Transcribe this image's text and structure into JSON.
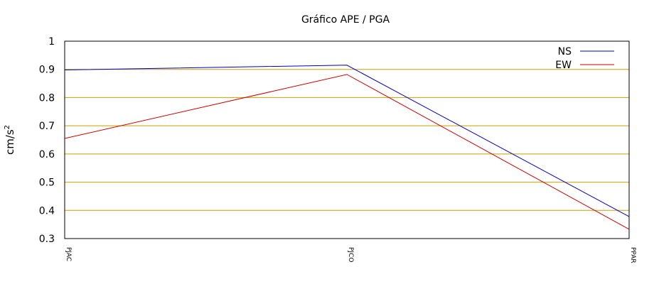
{
  "chart_data": {
    "type": "line",
    "title": "Gráfico  APE / PGA",
    "xlabel": "",
    "ylabel": "cm/s",
    "ylabel_superscript": "2",
    "categories": [
      "PJAC",
      "PJCO",
      "PPAR"
    ],
    "ylim": [
      0.3,
      1.0
    ],
    "yticks": [
      "1",
      "0.9",
      "0.8",
      "0.7",
      "0.6",
      "0.5",
      "0.4",
      "0.3"
    ],
    "ytick_values": [
      1.0,
      0.9,
      0.8,
      0.7,
      0.6,
      0.5,
      0.4,
      0.3
    ],
    "grid": true,
    "grid_color": "#c8a000",
    "legend_position": "top-right",
    "series": [
      {
        "name": "NS",
        "values": [
          0.898,
          0.915,
          0.378
        ],
        "color": "#0000cc"
      },
      {
        "name": "EW",
        "values": [
          0.655,
          0.882,
          0.333
        ],
        "color": "#cc0000"
      }
    ]
  }
}
